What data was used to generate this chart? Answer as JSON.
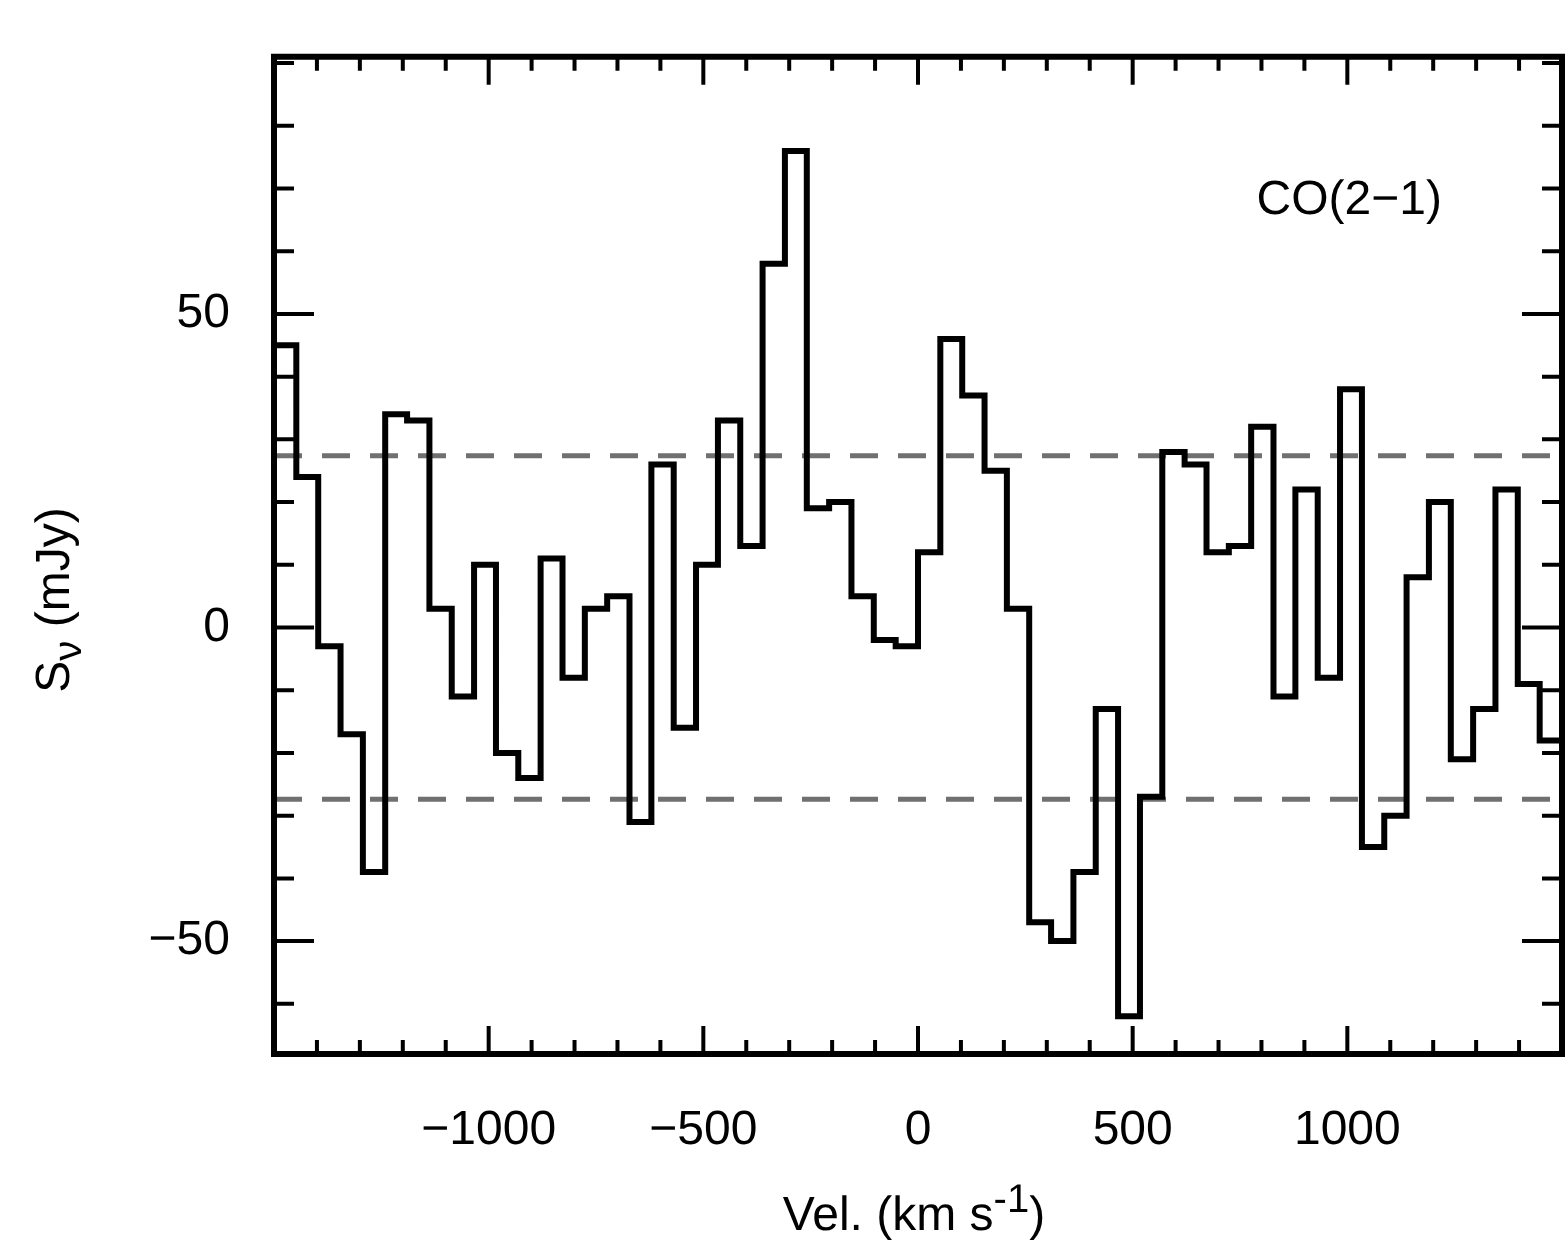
{
  "chart_data": {
    "type": "histogram",
    "xlabel": "Vel. (km s$^{-1}$)",
    "ylabel": "S$_{ν}$ (mJy)",
    "annotations": [
      "CO(2−1)"
    ],
    "bins": [
      -1500,
      -1448,
      -1397,
      -1345,
      -1293,
      -1241,
      -1190,
      -1138,
      -1086,
      -1034,
      -983,
      -931,
      -879,
      -828,
      -776,
      -724,
      -672,
      -621,
      -569,
      -517,
      -466,
      -414,
      -362,
      -310,
      -259,
      -207,
      -155,
      -103,
      -52,
      0,
      52,
      103,
      155,
      207,
      259,
      310,
      362,
      414,
      466,
      517,
      569,
      621,
      672,
      724,
      776,
      828,
      879,
      931,
      983,
      1034,
      1086,
      1138,
      1190,
      1241,
      1293,
      1345,
      1397,
      1448,
      1500
    ],
    "values": [
      45,
      24,
      -3,
      -17,
      -39,
      34,
      33,
      3,
      -11,
      10,
      -20,
      -24,
      11,
      -8,
      3,
      5,
      -31,
      26,
      -16,
      10,
      33,
      13,
      58,
      76,
      19,
      20,
      5,
      -2,
      -3,
      12,
      46,
      37,
      25,
      3,
      -47,
      -50,
      -39,
      -13,
      -62,
      -27,
      28,
      26,
      12,
      13,
      32,
      -11,
      22,
      -8,
      38,
      -35,
      -30,
      8,
      20,
      -21,
      -13,
      22,
      -9,
      -18
    ],
    "color": "#000000",
    "xlim": [
      -1500,
      1500
    ],
    "xticks": [
      {
        "value": -1400,
        "label": null
      },
      {
        "value": -1300,
        "label": null
      },
      {
        "value": -1200,
        "label": null
      },
      {
        "value": -1100,
        "label": null
      },
      {
        "value": -1000,
        "label": "−1000"
      },
      {
        "value": -900,
        "label": null
      },
      {
        "value": -800,
        "label": null
      },
      {
        "value": -700,
        "label": null
      },
      {
        "value": -600,
        "label": null
      },
      {
        "value": -500,
        "label": "−500"
      },
      {
        "value": -400,
        "label": null
      },
      {
        "value": -300,
        "label": null
      },
      {
        "value": -200,
        "label": null
      },
      {
        "value": -100,
        "label": null
      },
      0,
      {
        "value": 100,
        "label": null
      },
      {
        "value": 200,
        "label": null
      },
      {
        "value": 300,
        "label": null
      },
      {
        "value": 400,
        "label": null
      },
      500,
      {
        "value": 600,
        "label": null
      },
      {
        "value": 700,
        "label": null
      },
      {
        "value": 800,
        "label": null
      },
      {
        "value": 900,
        "label": null
      },
      1000,
      {
        "value": 1100,
        "label": null
      },
      {
        "value": 1200,
        "label": null
      },
      {
        "value": 1300,
        "label": null
      },
      {
        "value": 1400,
        "label": null
      }
    ],
    "ylim": [
      -68,
      91
    ],
    "yticks": [
      {
        "value": -60,
        "label": null
      },
      {
        "value": -50,
        "label": "−50"
      },
      {
        "value": -40,
        "label": null
      },
      {
        "value": -30,
        "label": null
      },
      {
        "value": -20,
        "label": null
      },
      {
        "value": -10,
        "label": null
      },
      0,
      {
        "value": 10,
        "label": null
      },
      {
        "value": 20,
        "label": null
      },
      {
        "value": 30,
        "label": null
      },
      {
        "value": 40,
        "label": null
      },
      50,
      {
        "value": 60,
        "label": null
      },
      {
        "value": 70,
        "label": null
      },
      {
        "value": 80,
        "label": null
      },
      {
        "value": 90,
        "label": null
      }
    ],
    "ref_lines": [
      {
        "axis": "y",
        "value": 27.4,
        "color": "#707070",
        "line_style": "dashed"
      },
      {
        "axis": "y",
        "value": -27.4,
        "color": "#707070",
        "line_style": "dashed"
      }
    ],
    "legend": false
  }
}
